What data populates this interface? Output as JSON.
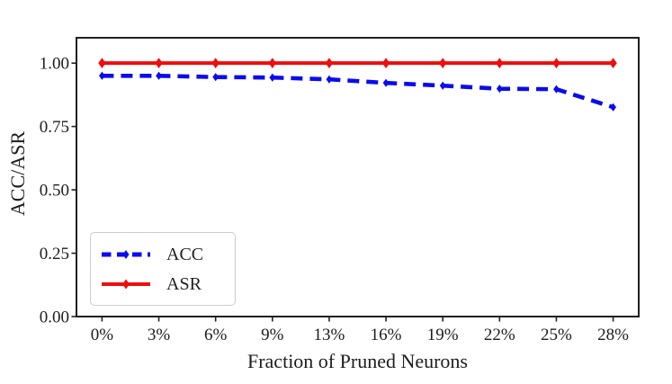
{
  "figure": {
    "background": "#ffffff"
  },
  "chart_data": {
    "type": "line",
    "title": "",
    "xlabel": "Fraction of Pruned Neurons",
    "ylabel": "ACC/ASR",
    "categories": [
      "0%",
      "3%",
      "6%",
      "9%",
      "13%",
      "16%",
      "19%",
      "22%",
      "25%",
      "28%"
    ],
    "series": [
      {
        "name": "ACC",
        "color": "#0b0bee",
        "line_style": "dashed",
        "marker": "thin-diamond",
        "values": [
          0.95,
          0.95,
          0.945,
          0.943,
          0.936,
          0.922,
          0.911,
          0.899,
          0.897,
          0.826
        ]
      },
      {
        "name": "ASR",
        "color": "#ed0e0e",
        "line_style": "solid",
        "marker": "thin-diamond",
        "values": [
          1.0,
          1.0,
          1.0,
          1.0,
          1.0,
          1.0,
          1.0,
          1.0,
          1.0,
          1.0
        ]
      }
    ],
    "yticks": {
      "labels": [
        "0.00",
        "0.25",
        "0.50",
        "0.75",
        "1.00"
      ],
      "values": [
        0,
        0.25,
        0.5,
        0.75,
        1.0
      ]
    },
    "ylim": [
      0,
      1.1
    ],
    "grid": false,
    "legend": {
      "position": "lower-left",
      "entries": [
        "ACC",
        "ASR"
      ]
    }
  }
}
